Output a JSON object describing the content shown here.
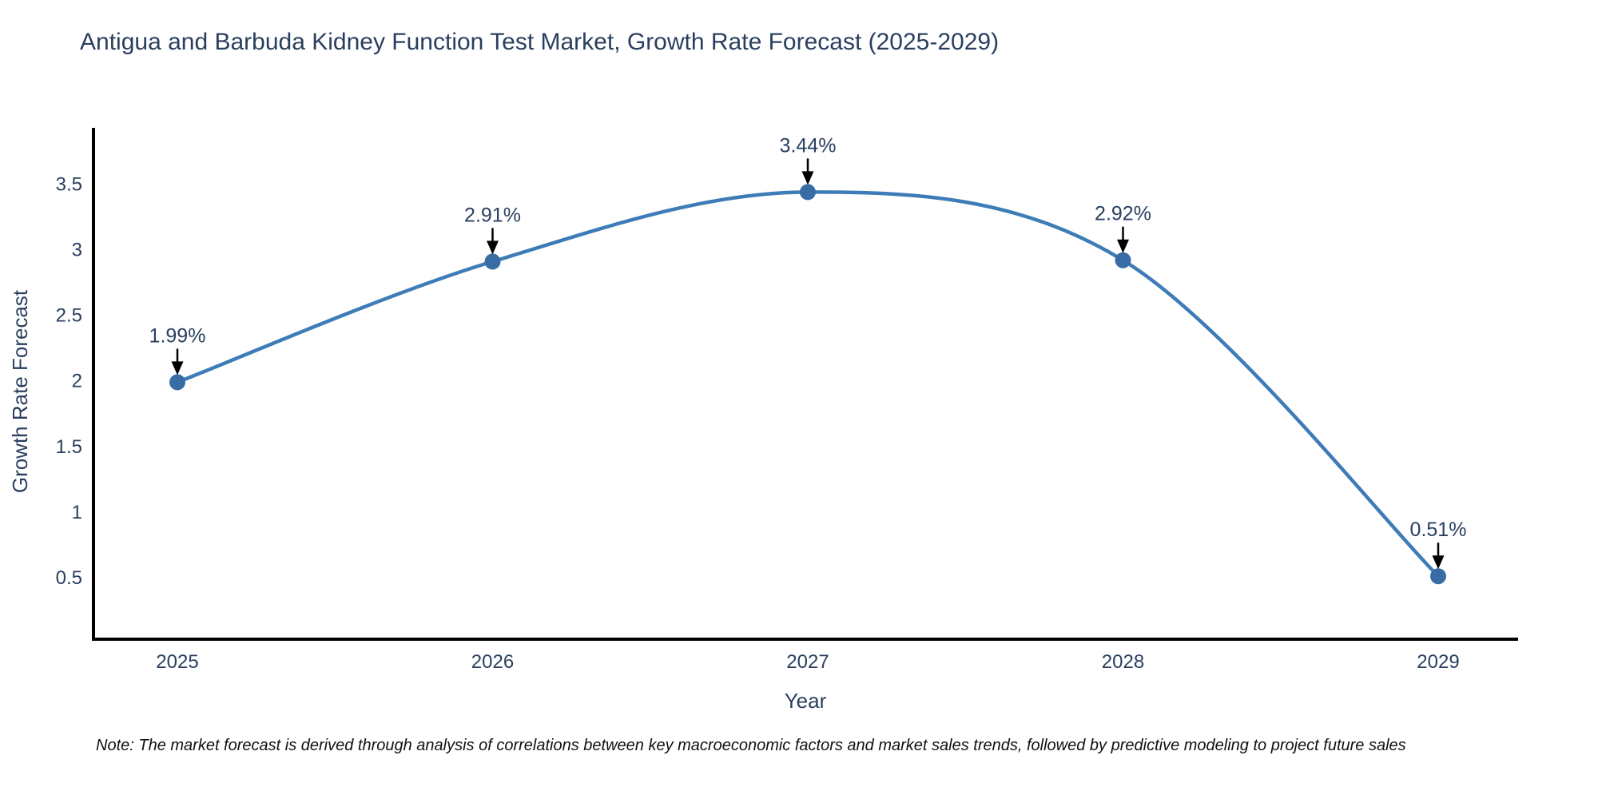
{
  "title": "Antigua and Barbuda Kidney Function Test Market, Growth Rate Forecast (2025-2029)",
  "note": "Note: The market forecast is derived through analysis of correlations between key macroeconomic factors and market sales trends, followed by predictive modeling to project future sales",
  "chart_data": {
    "type": "line",
    "line_shape": "spline",
    "title": "Antigua and Barbuda Kidney Function Test Market, Growth Rate Forecast (2025-2029)",
    "xlabel": "Year",
    "ylabel": "Growth Rate Forecast",
    "categories": [
      "2025",
      "2026",
      "2027",
      "2028",
      "2029"
    ],
    "values": [
      1.99,
      2.91,
      3.44,
      2.92,
      0.51
    ],
    "point_labels": [
      "1.99%",
      "2.91%",
      "3.44%",
      "2.92%",
      "0.51%"
    ],
    "y_ticks": [
      0.5,
      1,
      1.5,
      2,
      2.5,
      3,
      3.5
    ],
    "ylim": [
      0.03,
      3.93
    ],
    "grid": false,
    "legend": "none",
    "markers": true,
    "annotations_have_arrows": true,
    "colors": {
      "line": "#3e7cb8",
      "marker": "#376ca5",
      "axis": "#000000",
      "text": "#2a3f5f",
      "annotation_text": "#2a3f5f",
      "arrow": "#000000",
      "note_text": "#111111",
      "background": "#ffffff"
    }
  }
}
